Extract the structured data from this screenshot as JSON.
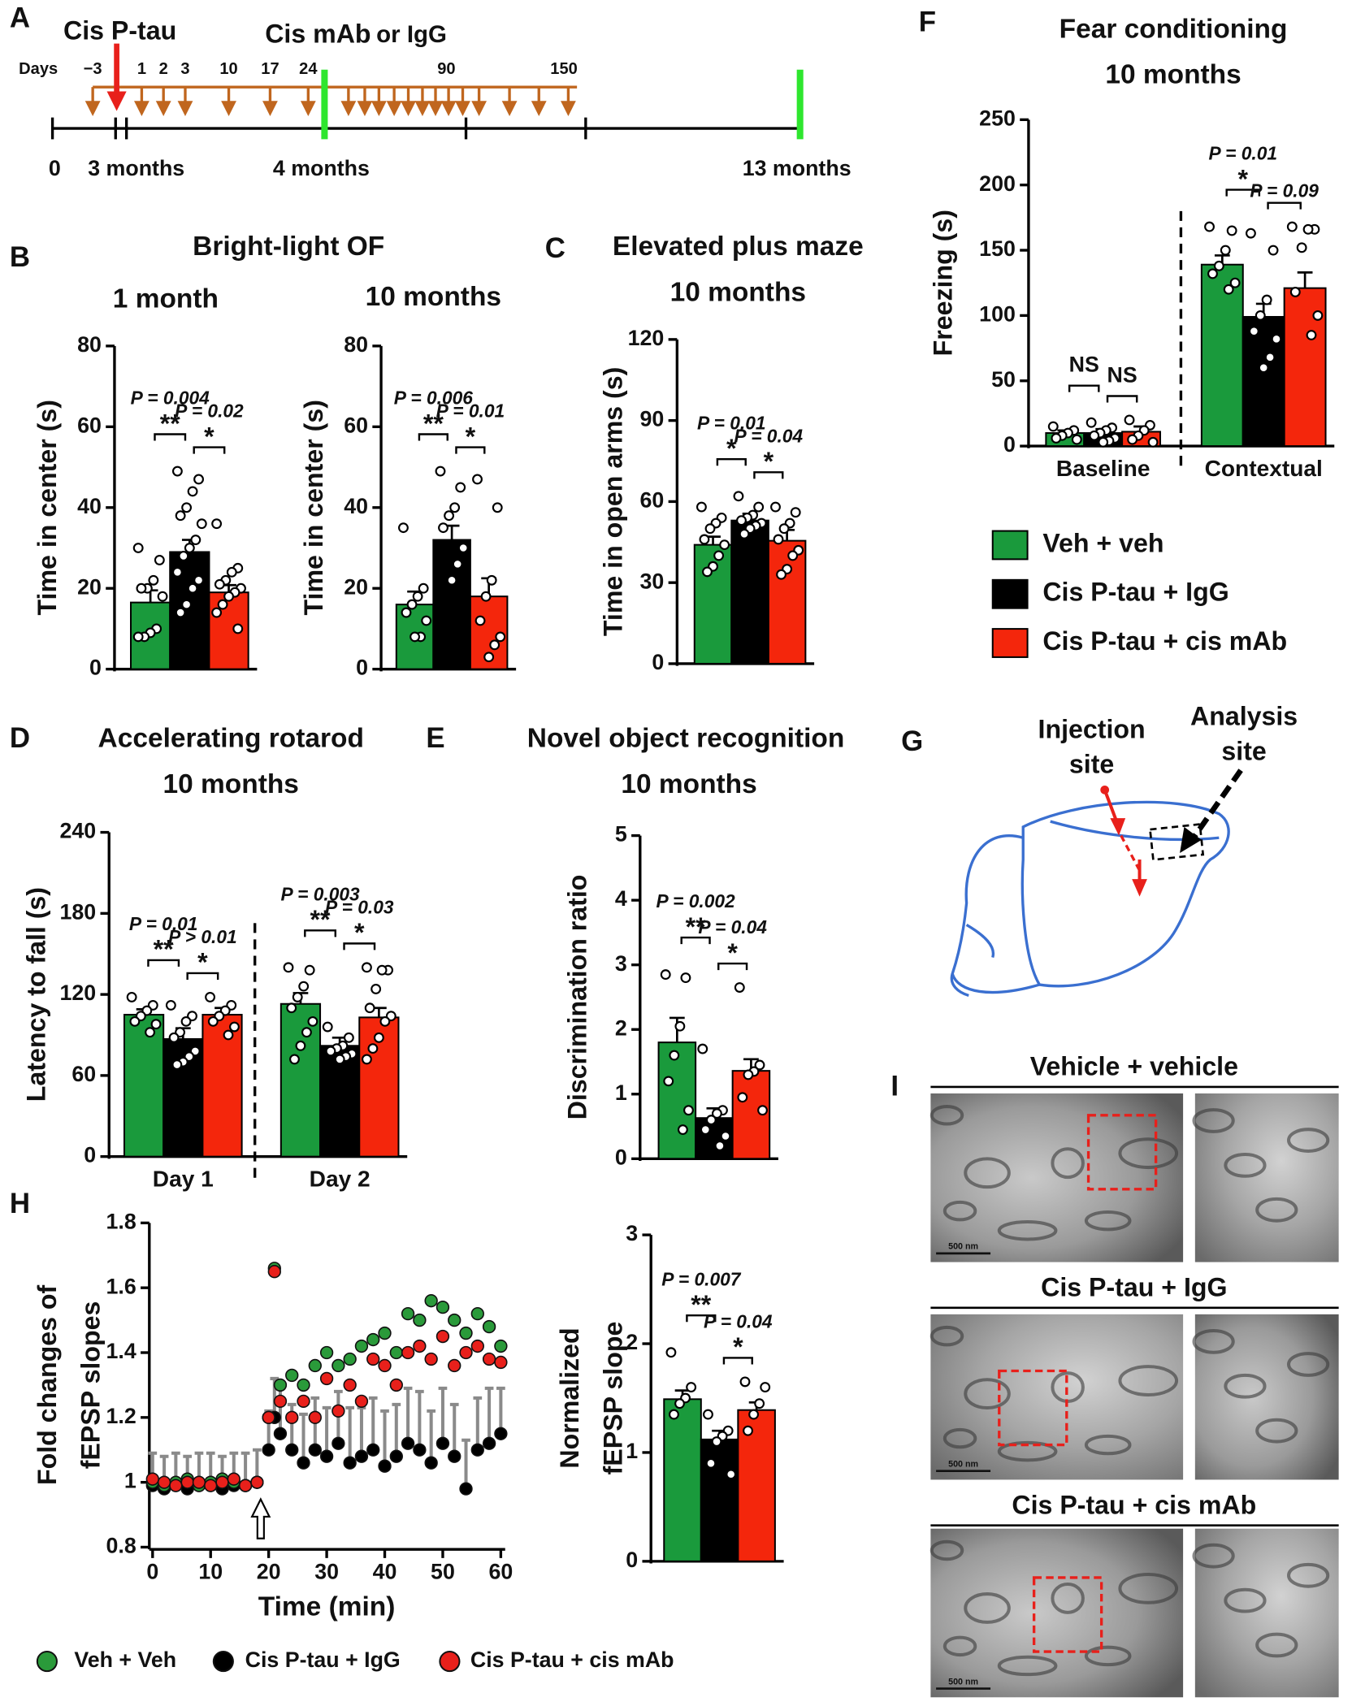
{
  "panel_labels": [
    "A",
    "B",
    "C",
    "D",
    "E",
    "F",
    "G",
    "H",
    "I"
  ],
  "timeline": {
    "cis_ptau": "Cis P-tau",
    "mab": "Cis mAb",
    "igg": "or IgG",
    "days_label": "Days",
    "days": [
      "−3",
      "1",
      "2",
      "3",
      "10",
      "17",
      "24",
      "90",
      "150"
    ],
    "months": [
      "0",
      "3 months",
      "4 months",
      "13 months"
    ]
  },
  "legend": {
    "names": [
      "Veh + veh",
      "Cis P-tau + IgG",
      "Cis P-tau + cis mAb"
    ],
    "colors": [
      "#1a9a3c",
      "#000000",
      "#f4260c"
    ]
  },
  "brain": {
    "injection": [
      "Injection",
      "site"
    ],
    "analysis": [
      "Analysis",
      "site"
    ]
  },
  "em": {
    "titles": [
      "Vehicle + vehicle",
      "Cis P-tau + IgG",
      "Cis P-tau + cis mAb"
    ],
    "scale": "500 nm"
  },
  "chart_data": [
    {
      "type": "bar",
      "title": "Bright-light OF",
      "subtitle": "1 month",
      "ylabel": "Time in center (s)",
      "ylim": [
        0,
        80
      ],
      "yticks": [
        0,
        20,
        40,
        60,
        80
      ],
      "colors": [
        "#1a9a3c",
        "#000000",
        "#f4260c"
      ],
      "groups": [
        {
          "values": [
            16.5,
            29,
            19
          ],
          "errors": [
            3,
            3,
            1.8
          ],
          "points": [
            [
              30,
              27,
              22,
              20,
              20,
              18,
              10,
              9,
              8,
              8
            ],
            [
              49,
              47,
              44,
              40,
              38,
              36,
              32,
              30,
              28,
              24,
              22,
              20,
              16,
              14
            ],
            [
              36,
              25,
              24,
              22,
              21,
              20,
              19,
              18,
              16,
              14,
              10
            ]
          ],
          "annotations": [
            {
              "label": "P = 0.004",
              "mark": "**"
            },
            {
              "label": "P = 0.02",
              "mark": "*"
            }
          ]
        }
      ]
    },
    {
      "type": "bar",
      "subtitle": "10 months",
      "ylabel": "Time in center (s)",
      "ylim": [
        0,
        80
      ],
      "yticks": [
        0,
        20,
        40,
        60,
        80
      ],
      "colors": [
        "#1a9a3c",
        "#000000",
        "#f4260c"
      ],
      "groups": [
        {
          "values": [
            16,
            32,
            18
          ],
          "errors": [
            3.2,
            3.5,
            4.5
          ],
          "points": [
            [
              35,
              20,
              18,
              16,
              14,
              12,
              8,
              8
            ],
            [
              49,
              45,
              40,
              38,
              35,
              30,
              26,
              22
            ],
            [
              47,
              40,
              22,
              18,
              12,
              8,
              6,
              3
            ]
          ],
          "annotations": [
            {
              "label": "P = 0.006",
              "mark": "**"
            },
            {
              "label": "P = 0.01",
              "mark": "*"
            }
          ]
        }
      ]
    },
    {
      "type": "bar",
      "title": "Elevated plus maze",
      "subtitle": "10 months",
      "ylabel": "Time in open arms (s)",
      "ylim": [
        0,
        120
      ],
      "yticks": [
        0,
        30,
        60,
        90,
        120
      ],
      "colors": [
        "#1a9a3c",
        "#000000",
        "#f4260c"
      ],
      "groups": [
        {
          "values": [
            44,
            53,
            45.5
          ],
          "errors": [
            3,
            2.5,
            4
          ],
          "points": [
            [
              58,
              54,
              52,
              50,
              46,
              44,
              40,
              36,
              34
            ],
            [
              62,
              58,
              55,
              54,
              53,
              52,
              51,
              50,
              48
            ],
            [
              58,
              56,
              52,
              50,
              46,
              42,
              40,
              35,
              33
            ]
          ],
          "annotations": [
            {
              "label": "P = 0.01",
              "mark": "*"
            },
            {
              "label": "P = 0.04",
              "mark": "*"
            }
          ]
        }
      ]
    },
    {
      "type": "bar",
      "title": "Fear conditioning",
      "subtitle": "10 months",
      "ylabel": "Freezing (s)",
      "ylim": [
        0,
        250
      ],
      "yticks": [
        0,
        50,
        100,
        150,
        200,
        250
      ],
      "colors": [
        "#1a9a3c",
        "#000000",
        "#f4260c"
      ],
      "groups": [
        {
          "category": "Baseline",
          "values": [
            10,
            10,
            11
          ],
          "errors": [
            2,
            3,
            4
          ],
          "points": [
            [
              15,
              12,
              10,
              8,
              6,
              5
            ],
            [
              18,
              14,
              12,
              10,
              8,
              6,
              4,
              3
            ],
            [
              20,
              16,
              12,
              8,
              5,
              3
            ]
          ],
          "annotations": [
            {
              "mark": "NS"
            },
            {
              "mark": "NS"
            }
          ]
        },
        {
          "category": "Contextual",
          "values": [
            139,
            99,
            121
          ],
          "errors": [
            7,
            10,
            12
          ],
          "points": [
            [
              168,
              165,
              150,
              138,
              132,
              125,
              120
            ],
            [
              163,
              150,
              112,
              100,
              88,
              82,
              68,
              60
            ],
            [
              168,
              166,
              166,
              152,
              118,
              100,
              85
            ]
          ],
          "annotations": [
            {
              "label": "P = 0.01",
              "mark": "*"
            },
            {
              "label": "P = 0.09"
            }
          ]
        }
      ]
    },
    {
      "type": "bar",
      "title": "Accelerating rotarod",
      "subtitle": "10 months",
      "ylabel": "Latency to fall (s)",
      "ylim": [
        0,
        240
      ],
      "yticks": [
        0,
        60,
        120,
        180,
        240
      ],
      "colors": [
        "#1a9a3c",
        "#000000",
        "#f4260c"
      ],
      "groups": [
        {
          "category": "Day 1",
          "values": [
            105,
            87,
            105
          ],
          "errors": [
            4,
            8,
            5
          ],
          "points": [
            [
              118,
              112,
              108,
              104,
              100,
              98,
              92
            ],
            [
              112,
              104,
              100,
              92,
              88,
              78,
              74,
              70,
              68
            ],
            [
              118,
              112,
              108,
              104,
              100,
              96,
              90
            ]
          ],
          "annotations": [
            {
              "label": "P = 0.01",
              "mark": "**"
            },
            {
              "label": "P > 0.01",
              "mark": "*"
            }
          ]
        },
        {
          "category": "Day 2",
          "values": [
            113,
            82,
            103
          ],
          "errors": [
            8,
            6,
            7
          ],
          "points": [
            [
              140,
              138,
              126,
              118,
              110,
              100,
              92,
              82,
              72
            ],
            [
              96,
              88,
              82,
              80,
              78,
              76,
              74,
              72
            ],
            [
              140,
              138,
              138,
              124,
              110,
              104,
              100,
              88,
              80,
              72
            ]
          ],
          "annotations": [
            {
              "label": "P = 0.003",
              "mark": "**"
            },
            {
              "label": "P = 0.03",
              "mark": "*"
            }
          ]
        }
      ]
    },
    {
      "type": "bar",
      "title": "Novel object recognition",
      "subtitle": "10 months",
      "ylabel": "Discrimination ratio",
      "ylim": [
        0,
        5
      ],
      "yticks": [
        0,
        1,
        2,
        3,
        4,
        5
      ],
      "colors": [
        "#1a9a3c",
        "#000000",
        "#f4260c"
      ],
      "groups": [
        {
          "values": [
            1.8,
            0.63,
            1.36
          ],
          "errors": [
            0.38,
            0.15,
            0.18
          ],
          "points": [
            [
              2.85,
              2.8,
              2.05,
              1.6,
              1.2,
              0.75,
              0.45
            ],
            [
              1.7,
              0.75,
              0.7,
              0.6,
              0.45,
              0.35,
              0.2
            ],
            [
              2.65,
              1.45,
              1.35,
              1.3,
              0.95,
              0.75
            ]
          ],
          "annotations": [
            {
              "label": "P = 0.002",
              "mark": "**"
            },
            {
              "label": "P = 0.04",
              "mark": "*"
            }
          ]
        }
      ]
    },
    {
      "type": "scatter",
      "xlabel": "Time (min)",
      "ylabel": [
        "Fold changes of",
        "fEPSP slopes"
      ],
      "xlim": [
        0,
        60
      ],
      "xticks": [
        0,
        10,
        20,
        30,
        40,
        50,
        60
      ],
      "ylim": [
        0.8,
        1.8
      ],
      "yticks": [
        0.8,
        1,
        1.2,
        1.4,
        1.6,
        1.8
      ],
      "x": [
        0,
        2,
        4,
        6,
        8,
        10,
        12,
        14,
        16,
        18,
        20,
        21,
        22,
        24,
        26,
        28,
        30,
        32,
        34,
        36,
        38,
        40,
        42,
        44,
        46,
        48,
        50,
        52,
        54,
        56,
        58,
        60
      ],
      "series": [
        {
          "name": "Cis P-tau + IgG",
          "color": "#000000",
          "values": [
            0.99,
            0.98,
            0.99,
            0.98,
            0.99,
            0.99,
            0.98,
            0.99,
            0.99,
            1.0,
            1.1,
            1.2,
            1.15,
            1.1,
            1.06,
            1.1,
            1.08,
            1.12,
            1.06,
            1.08,
            1.1,
            1.05,
            1.08,
            1.12,
            1.1,
            1.06,
            1.12,
            1.08,
            0.98,
            1.1,
            1.12,
            1.15
          ],
          "errors": [
            0.1,
            0.1,
            0.1,
            0.1,
            0.1,
            0.1,
            0.1,
            0.1,
            0.1,
            0.1,
            0.12,
            0.12,
            0.15,
            0.14,
            0.15,
            0.16,
            0.15,
            0.16,
            0.17,
            0.15,
            0.16,
            0.17,
            0.16,
            0.17,
            0.18,
            0.16,
            0.17,
            0.16,
            0.15,
            0.16,
            0.17,
            0.14
          ]
        },
        {
          "name": "Veh + Veh",
          "color": "#2a9a3a",
          "values": [
            1.0,
            0.99,
            1.0,
            1.01,
            0.99,
            1.0,
            1.01,
            1.0,
            0.99,
            1.0,
            1.2,
            1.66,
            1.3,
            1.33,
            1.3,
            1.36,
            1.4,
            1.36,
            1.38,
            1.42,
            1.44,
            1.46,
            1.4,
            1.52,
            1.5,
            1.56,
            1.54,
            1.5,
            1.46,
            1.52,
            1.48,
            1.42
          ]
        },
        {
          "name": "Cis P-tau + cis mAb",
          "color": "#e8201b",
          "values": [
            1.01,
            1.0,
            0.99,
            1.0,
            1.0,
            0.99,
            1.0,
            1.01,
            0.99,
            1.0,
            1.2,
            1.65,
            1.25,
            1.2,
            1.25,
            1.2,
            1.32,
            1.22,
            1.3,
            1.25,
            1.38,
            1.36,
            1.3,
            1.4,
            1.42,
            1.38,
            1.45,
            1.36,
            1.4,
            1.42,
            1.38,
            1.37
          ]
        }
      ]
    },
    {
      "type": "bar",
      "ylabel": [
        "Normalized",
        "fEPSP slope"
      ],
      "ylim": [
        0,
        3
      ],
      "yticks": [
        0,
        1,
        2,
        3
      ],
      "colors": [
        "#1a9a3c",
        "#000000",
        "#f4260c"
      ],
      "groups": [
        {
          "values": [
            1.49,
            1.12,
            1.39
          ],
          "errors": [
            0.08,
            0.08,
            0.07
          ],
          "points": [
            [
              1.92,
              1.6,
              1.5,
              1.45,
              1.35
            ],
            [
              1.35,
              1.2,
              1.15,
              1.1,
              0.9,
              0.8
            ],
            [
              1.65,
              1.6,
              1.45,
              1.35,
              1.2
            ]
          ],
          "annotations": [
            {
              "label": "P = 0.007",
              "mark": "**"
            },
            {
              "label": "P = 0.04",
              "mark": "*"
            }
          ]
        }
      ]
    }
  ]
}
